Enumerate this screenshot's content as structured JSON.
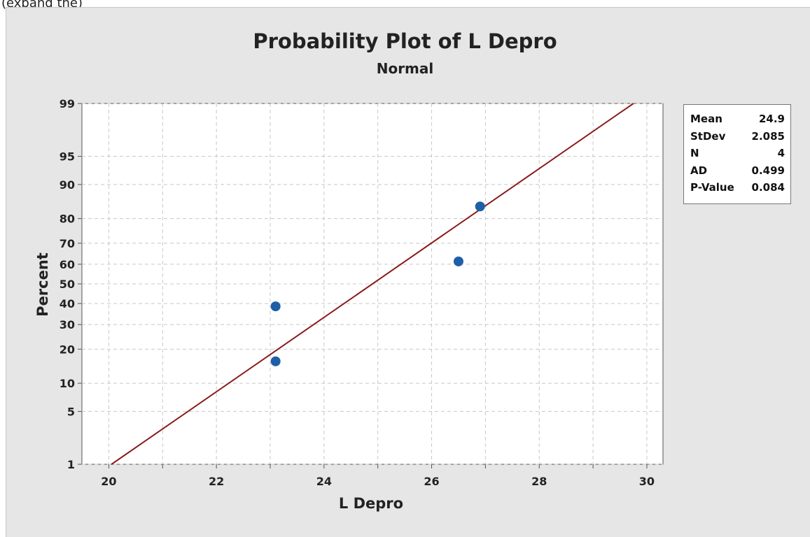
{
  "page": {
    "partial_top_text": "(expand the)"
  },
  "chart_data": {
    "type": "scatter",
    "title": "Probability Plot of L Depro",
    "subtitle": "Normal",
    "xlabel": "L Depro",
    "ylabel": "Percent",
    "xlim": [
      19.5,
      30.3
    ],
    "ylim_percent": [
      1,
      99
    ],
    "y_scale": "normal-probability",
    "x_ticks": [
      20,
      22,
      24,
      26,
      28,
      30
    ],
    "x_tick_labels": [
      "20",
      "22",
      "24",
      "26",
      "28",
      "30"
    ],
    "x_grid": [
      20,
      21,
      22,
      23,
      24,
      25,
      26,
      27,
      28,
      29,
      30
    ],
    "y_ticks": [
      1,
      5,
      10,
      20,
      30,
      40,
      50,
      60,
      70,
      80,
      90,
      95,
      99
    ],
    "y_tick_labels": [
      "1",
      "5",
      "10",
      "20",
      "30",
      "40",
      "50",
      "60",
      "70",
      "80",
      "90",
      "95",
      "99"
    ],
    "grid": true,
    "points": [
      {
        "x": 23.1,
        "y": 15.9
      },
      {
        "x": 23.1,
        "y": 38.6
      },
      {
        "x": 26.5,
        "y": 61.4
      },
      {
        "x": 26.9,
        "y": 84.1
      }
    ],
    "fit_line": {
      "mean": 24.9,
      "stdev": 2.085
    },
    "colors": {
      "points": "#1f5fa8",
      "fit_line": "#8b1a1a",
      "grid": "#c8c8c8",
      "panel": "#e6e6e6",
      "plot_area": "#ffffff"
    },
    "legend_position": "top-right"
  },
  "stats": [
    {
      "label": "Mean",
      "value": "24.9"
    },
    {
      "label": "StDev",
      "value": "2.085"
    },
    {
      "label": "N",
      "value": "4"
    },
    {
      "label": "AD",
      "value": "0.499"
    },
    {
      "label": "P-Value",
      "value": "0.084"
    }
  ]
}
